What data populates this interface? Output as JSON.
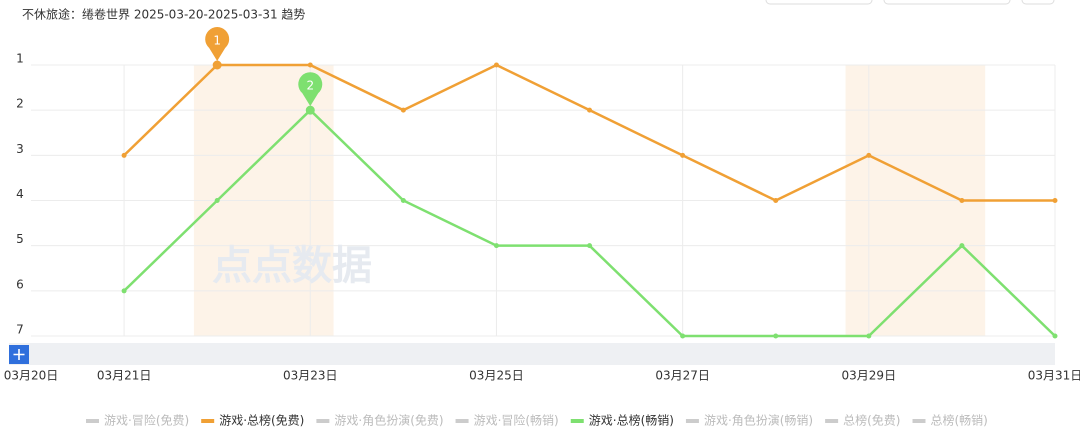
{
  "chart_data": {
    "type": "line",
    "title": "不休旅途：绻卷世界 2025-03-20-2025-03-31 趋势",
    "watermark": "点点数据",
    "categories": [
      "03月20日",
      "03月21日",
      null,
      "03月23日",
      null,
      "03月25日",
      null,
      "03月27日",
      null,
      "03月29日",
      null,
      "03月31日"
    ],
    "ylim": [
      7,
      1
    ],
    "yticks": [
      1,
      2,
      3,
      4,
      5,
      6,
      7
    ],
    "grid": true,
    "highlight_bands": [
      [
        2,
        3
      ],
      [
        9,
        10
      ]
    ],
    "annotations": [
      {
        "label": "1",
        "series": 1,
        "index": 2
      },
      {
        "label": "2",
        "series": 4,
        "index": 3
      }
    ],
    "series": [
      {
        "name": "游戏·冒险(免费)",
        "color": "#cccccc",
        "values": [
          null,
          null,
          null,
          null,
          null,
          null,
          null,
          null,
          null,
          null,
          null,
          null
        ]
      },
      {
        "name": "游戏·总榜(免费)",
        "color": "#f0a035",
        "values": [
          null,
          3,
          1,
          1,
          2,
          1,
          2,
          3,
          4,
          3,
          4,
          4
        ]
      },
      {
        "name": "游戏·角色扮演(免费)",
        "color": "#cccccc",
        "values": [
          null,
          null,
          null,
          null,
          null,
          null,
          null,
          null,
          null,
          null,
          null,
          null
        ]
      },
      {
        "name": "游戏·冒险(畅销)",
        "color": "#cccccc",
        "values": [
          null,
          null,
          null,
          null,
          null,
          null,
          null,
          null,
          null,
          null,
          null,
          null
        ]
      },
      {
        "name": "游戏·总榜(畅销)",
        "color": "#7ee070",
        "values": [
          null,
          6,
          4,
          2,
          4,
          5,
          5,
          7,
          7,
          7,
          5,
          7
        ]
      },
      {
        "name": "游戏·角色扮演(畅销)",
        "color": "#cccccc",
        "values": [
          null,
          null,
          null,
          null,
          null,
          null,
          null,
          null,
          null,
          null,
          null,
          null
        ]
      },
      {
        "name": "总榜(免费)",
        "color": "#cccccc",
        "values": [
          null,
          null,
          null,
          null,
          null,
          null,
          null,
          null,
          null,
          null,
          null,
          null
        ]
      },
      {
        "name": "总榜(畅销)",
        "color": "#cccccc",
        "values": [
          null,
          null,
          null,
          null,
          null,
          null,
          null,
          null,
          null,
          null,
          null,
          null
        ]
      }
    ]
  }
}
